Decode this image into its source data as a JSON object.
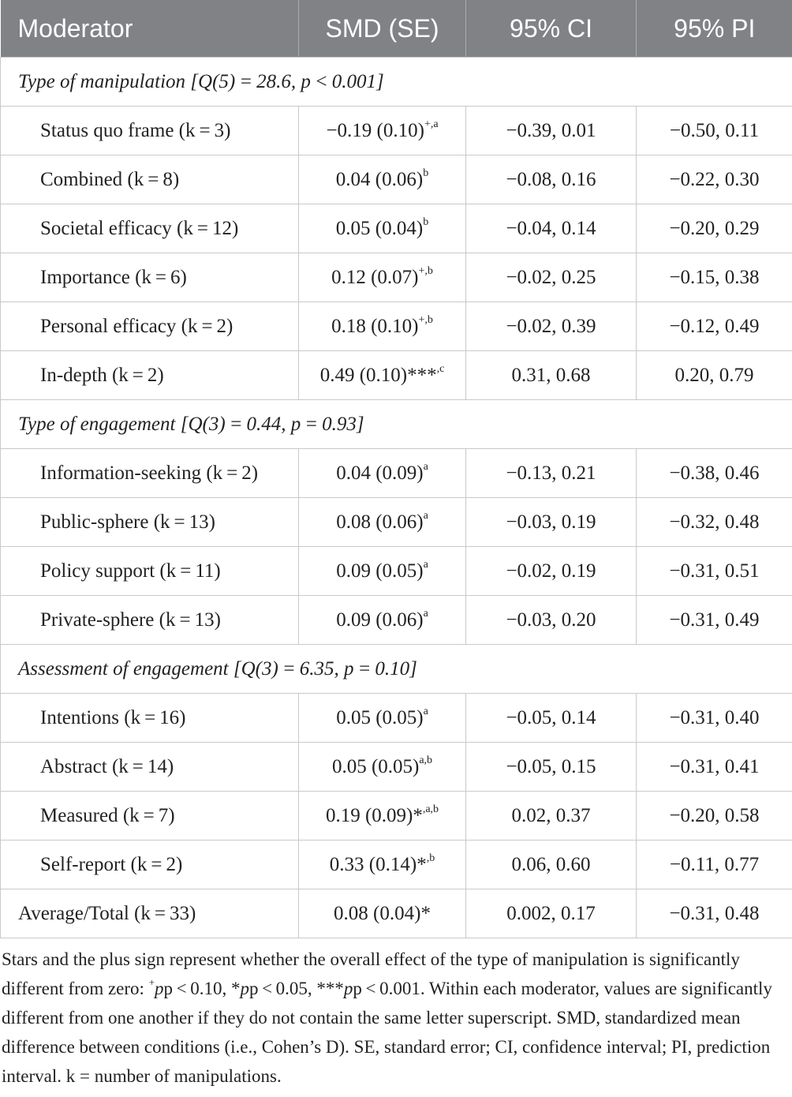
{
  "header": {
    "col1": "Moderator",
    "col2": "SMD (SE)",
    "col3": "95% CI",
    "col4": "95% PI"
  },
  "groups": [
    {
      "title": "Type of manipulation",
      "stat": "[Q(5) = 28.6, p < 0.001]",
      "rows": [
        {
          "moderator": "Status quo frame (k = 3)",
          "smd": "−0.19 (0.10)",
          "sup": "+,a",
          "ci": "−0.39, 0.01",
          "pi": "−0.50, 0.11"
        },
        {
          "moderator": "Combined (k = 8)",
          "smd": "0.04 (0.06)",
          "sup": "b",
          "ci": "−0.08, 0.16",
          "pi": "−0.22, 0.30"
        },
        {
          "moderator": "Societal efficacy (k = 12)",
          "smd": "0.05 (0.04)",
          "sup": "b",
          "ci": "−0.04, 0.14",
          "pi": "−0.20, 0.29"
        },
        {
          "moderator": "Importance (k = 6)",
          "smd": "0.12 (0.07)",
          "sup": "+,b",
          "ci": "−0.02, 0.25",
          "pi": "−0.15, 0.38"
        },
        {
          "moderator": "Personal efficacy (k = 2)",
          "smd": "0.18 (0.10)",
          "sup": "+,b",
          "ci": "−0.02, 0.39",
          "pi": "−0.12, 0.49"
        },
        {
          "moderator": "In-depth (k = 2)",
          "smd": "0.49 (0.10)***",
          "sup": ",c",
          "ci": "0.31, 0.68",
          "pi": "0.20, 0.79"
        }
      ]
    },
    {
      "title": "Type of engagement",
      "stat": "[Q(3) = 0.44, p = 0.93]",
      "rows": [
        {
          "moderator": "Information-seeking (k = 2)",
          "smd": "0.04 (0.09)",
          "sup": "a",
          "ci": "−0.13, 0.21",
          "pi": "−0.38, 0.46"
        },
        {
          "moderator": "Public-sphere (k = 13)",
          "smd": "0.08 (0.06)",
          "sup": "a",
          "ci": "−0.03, 0.19",
          "pi": "−0.32, 0.48"
        },
        {
          "moderator": "Policy support (k = 11)",
          "smd": "0.09 (0.05)",
          "sup": "a",
          "ci": "−0.02, 0.19",
          "pi": "−0.31, 0.51"
        },
        {
          "moderator": "Private-sphere (k = 13)",
          "smd": "0.09 (0.06)",
          "sup": "a",
          "ci": "−0.03, 0.20",
          "pi": "−0.31, 0.49"
        }
      ]
    },
    {
      "title": "Assessment of engagement",
      "stat": "[Q(3) = 6.35, p = 0.10]",
      "rows": [
        {
          "moderator": "Intentions (k = 16)",
          "smd": "0.05 (0.05)",
          "sup": "a",
          "ci": "−0.05, 0.14",
          "pi": "−0.31, 0.40"
        },
        {
          "moderator": "Abstract (k = 14)",
          "smd": "0.05 (0.05)",
          "sup": "a,b",
          "ci": "−0.05, 0.15",
          "pi": "−0.31, 0.41"
        },
        {
          "moderator": "Measured (k = 7)",
          "smd": "0.19 (0.09)*",
          "sup": ",a,b",
          "ci": "0.02, 0.37",
          "pi": "−0.20, 0.58"
        },
        {
          "moderator": "Self-report (k = 2)",
          "smd": "0.33 (0.14)*",
          "sup": ",b",
          "ci": "0.06, 0.60",
          "pi": "−0.11, 0.77"
        }
      ]
    }
  ],
  "total": {
    "moderator": "Average/Total (k = 33)",
    "smd": "0.08 (0.04)*",
    "ci": "0.002, 0.17",
    "pi": "−0.31, 0.48"
  },
  "footnote": {
    "p1": "Stars and the plus sign represent whether the overall effect of the type of manipulation is significantly different from zero: ",
    "plus": "+",
    "p2": "p < 0.10, *",
    "p3": "p < 0.05, ***",
    "p4": "p < 0.001. Within each moderator, values are significantly different from one another if they do not contain the same letter superscript. SMD, standardized mean difference between conditions (i.e., Cohen’s D). SE, standard error; CI, confidence interval; PI, prediction interval. k = number of manipulations."
  }
}
